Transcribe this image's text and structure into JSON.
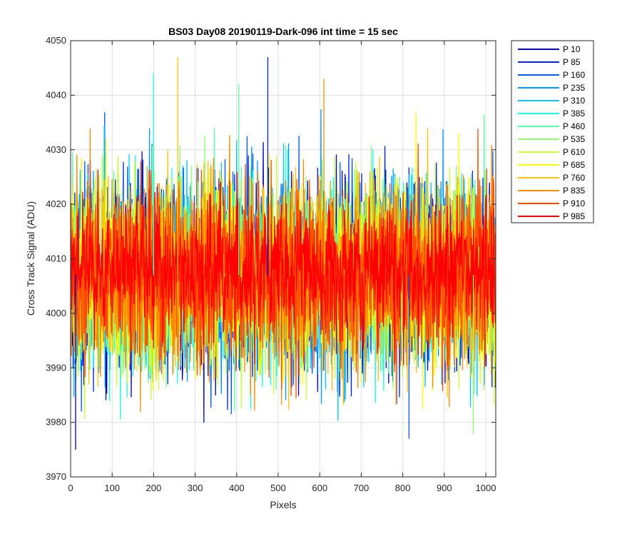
{
  "chart_data": {
    "type": "line",
    "title": "BS03 Day08 20190119-Dark-096 int time = 15 sec",
    "xlabel": "Pixels",
    "ylabel": "Cross Track Signal (ADU)",
    "xlim": [
      0,
      1024
    ],
    "ylim": [
      3970,
      4050
    ],
    "xticks": [
      "0",
      "100",
      "200",
      "300",
      "400",
      "500",
      "600",
      "700",
      "800",
      "900",
      "1000"
    ],
    "yticks": [
      "3970",
      "3980",
      "3990",
      "4000",
      "4010",
      "4020",
      "4030",
      "4040",
      "4050"
    ],
    "grid": true,
    "legend_position": "outside-top-right",
    "x_points": 1024,
    "series": [
      {
        "name": "P 10",
        "color": "#0000bf",
        "mean": 4007,
        "std": 8
      },
      {
        "name": "P 85",
        "color": "#0022e8",
        "mean": 4007,
        "std": 8
      },
      {
        "name": "P 160",
        "color": "#0057ff",
        "mean": 4007,
        "std": 8
      },
      {
        "name": "P 235",
        "color": "#0096ff",
        "mean": 4007,
        "std": 8
      },
      {
        "name": "P 310",
        "color": "#00c8ff",
        "mean": 4007,
        "std": 8
      },
      {
        "name": "P 385",
        "color": "#17ffe8",
        "mean": 4007,
        "std": 8
      },
      {
        "name": "P 460",
        "color": "#55ffaa",
        "mean": 4007,
        "std": 8
      },
      {
        "name": "P 535",
        "color": "#8cff73",
        "mean": 4007,
        "std": 8
      },
      {
        "name": "P 610",
        "color": "#c8ff37",
        "mean": 4007,
        "std": 8
      },
      {
        "name": "P 685",
        "color": "#ffff00",
        "mean": 4007,
        "std": 8
      },
      {
        "name": "P 760",
        "color": "#ffc200",
        "mean": 4007,
        "std": 8
      },
      {
        "name": "P 835",
        "color": "#ff8a00",
        "mean": 4007,
        "std": 8
      },
      {
        "name": "P 910",
        "color": "#ff4b00",
        "mean": 4007,
        "std": 8
      },
      {
        "name": "P 985",
        "color": "#ff0000",
        "mean": 4008,
        "std": 6
      }
    ],
    "annotated_extremes": [
      {
        "x": 12,
        "y": 3975
      },
      {
        "x": 200,
        "y": 4044
      },
      {
        "x": 258,
        "y": 4047
      },
      {
        "x": 475,
        "y": 4047
      },
      {
        "x": 405,
        "y": 4042
      },
      {
        "x": 610,
        "y": 4043
      },
      {
        "x": 815,
        "y": 3977
      },
      {
        "x": 970,
        "y": 3978
      }
    ]
  }
}
